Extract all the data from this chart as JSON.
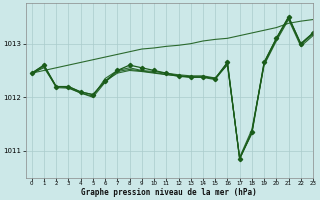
{
  "background_color": "#cce8e8",
  "grid_color": "#aacccc",
  "line_color": "#1a5c1a",
  "xlabel": "Graphe pression niveau de la mer (hPa)",
  "xlim": [
    -0.5,
    23
  ],
  "ylim": [
    1010.5,
    1013.75
  ],
  "yticks": [
    1011,
    1012,
    1013
  ],
  "xticks": [
    0,
    1,
    2,
    3,
    4,
    5,
    6,
    7,
    8,
    9,
    10,
    11,
    12,
    13,
    14,
    15,
    16,
    17,
    18,
    19,
    20,
    21,
    22,
    23
  ],
  "flat_series": [
    [
      1012.45,
      1012.6,
      1012.2,
      1012.2,
      1012.1,
      1012.05,
      1012.3,
      1012.45,
      1012.5,
      1012.48,
      1012.45,
      1012.42,
      1012.4,
      1012.38,
      1012.38,
      1012.35,
      1012.65,
      1010.85,
      1011.35,
      1012.65,
      1013.1,
      1013.5,
      1013.0,
      1013.2
    ],
    [
      1012.45,
      1012.55,
      1012.2,
      1012.18,
      1012.08,
      1012.02,
      1012.35,
      1012.5,
      1012.55,
      1012.5,
      1012.48,
      1012.45,
      1012.42,
      1012.4,
      1012.4,
      1012.36,
      1012.6,
      1010.88,
      1011.4,
      1012.6,
      1013.05,
      1013.45,
      1012.95,
      1013.15
    ],
    [
      1012.42,
      1012.58,
      1012.18,
      1012.17,
      1012.08,
      1012.0,
      1012.28,
      1012.48,
      1012.52,
      1012.49,
      1012.46,
      1012.43,
      1012.39,
      1012.37,
      1012.37,
      1012.33,
      1012.62,
      1010.86,
      1011.32,
      1012.62,
      1013.08,
      1013.48,
      1012.98,
      1013.18
    ]
  ],
  "rising_line": [
    1012.45,
    1012.5,
    1012.55,
    1012.6,
    1012.65,
    1012.7,
    1012.75,
    1012.8,
    1012.85,
    1012.9,
    1012.92,
    1012.95,
    1012.97,
    1013.0,
    1013.05,
    1013.08,
    1013.1,
    1013.15,
    1013.2,
    1013.25,
    1013.3,
    1013.38,
    1013.42,
    1013.45
  ],
  "main_series": [
    1012.45,
    1012.6,
    1012.2,
    1012.2,
    1012.1,
    1012.05,
    1012.3,
    1012.5,
    1012.6,
    1012.55,
    1012.5,
    1012.45,
    1012.4,
    1012.38,
    1012.38,
    1012.35,
    1012.65,
    1010.85,
    1011.35,
    1012.65,
    1013.1,
    1013.5,
    1013.0,
    1013.2
  ]
}
